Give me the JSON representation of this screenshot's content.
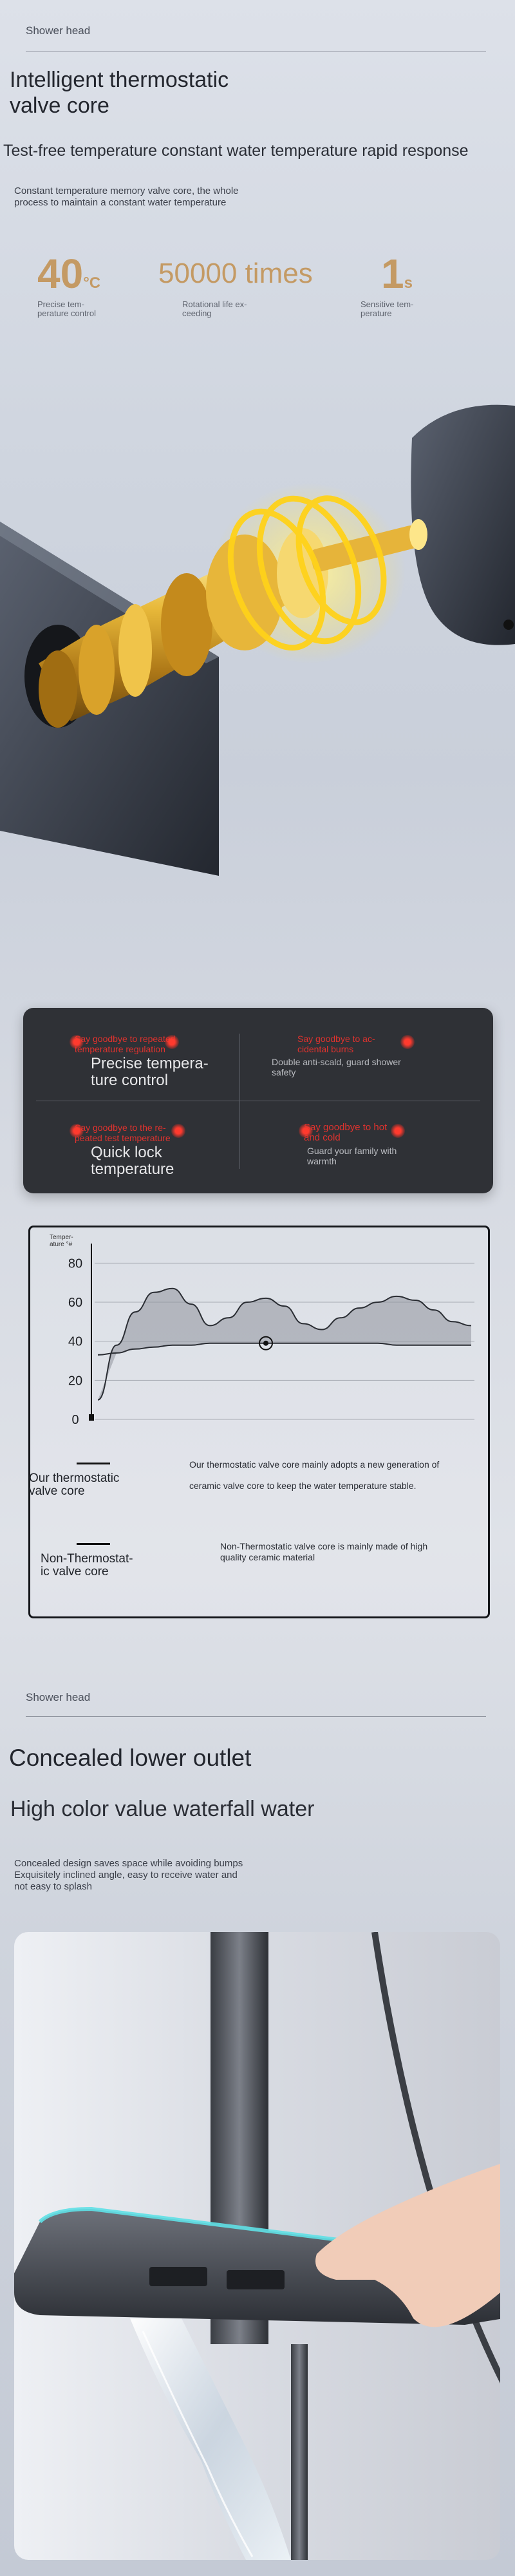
{
  "section1": {
    "kicker": "Shower head",
    "title_line1": "Intelligent thermostatic",
    "title_line2": "valve core",
    "subtitle": "Test-free temperature constant water temperature rapid response",
    "desc_line1": "Constant temperature memory valve core, the whole",
    "desc_line2": "process to maintain a constant water temperature",
    "stats": [
      {
        "number": "40",
        "unit": "°C",
        "label_line1": "Precise tem-",
        "label_line2": "perature control"
      },
      {
        "number": "50000 times",
        "unit": "",
        "label_line1": "Rotational life ex-",
        "label_line2": "ceeding"
      },
      {
        "number": "1",
        "unit": "s",
        "label_line1": "Sensitive tem-",
        "label_line2": "perature"
      }
    ]
  },
  "panel": {
    "cells": [
      {
        "red_line1": "Say goodbye to repeated",
        "red_line2": "temperature regulation",
        "title_line1": "Precise tempera-",
        "title_line2": "ture control",
        "sub_line1": "",
        "sub_line2": ""
      },
      {
        "red_line1": "Say goodbye to ac-",
        "red_line2": "cidental burns",
        "title_line1": "",
        "title_line2": "",
        "sub_line1": "Double anti-scald, guard shower",
        "sub_line2": "safety"
      },
      {
        "red_line1": "Say goodbye to the re-",
        "red_line2": "peated test temperature",
        "title_line1": "Quick lock",
        "title_line2": "temperature",
        "sub_line1": "",
        "sub_line2": ""
      },
      {
        "red_line1": "Say goodbye to hot",
        "red_line2": "and cold",
        "title_line1": "",
        "title_line2": "",
        "sub_line1": "Guard your family with",
        "sub_line2": "warmth"
      }
    ]
  },
  "chart_data": {
    "type": "line",
    "ylabel_line1": "Temper-",
    "ylabel_line2": "ature °#",
    "yticks": [
      "80",
      "60",
      "40",
      "20",
      "0"
    ],
    "ylim": [
      0,
      90
    ],
    "x": [
      0,
      5,
      10,
      15,
      20,
      25,
      30,
      35,
      40,
      45,
      50,
      55,
      60,
      65,
      70,
      75,
      80,
      85,
      90,
      95,
      100
    ],
    "series": [
      {
        "name": "Non-Thermostatic valve core",
        "values": [
          10,
          38,
          55,
          65,
          67,
          59,
          48,
          52,
          60,
          62,
          58,
          49,
          46,
          52,
          57,
          60,
          63,
          61,
          56,
          50,
          48
        ]
      },
      {
        "name": "Our thermostatic valve core",
        "values": [
          33,
          34,
          36,
          37,
          38,
          38,
          39,
          39,
          39,
          39,
          39,
          39,
          39,
          39,
          39,
          39,
          38,
          38,
          38,
          38,
          38
        ]
      }
    ],
    "grid": true,
    "legend_placement": "bottom-left",
    "marker_x": 45,
    "legend": [
      {
        "label_line1": "Our thermostatic",
        "label_line2": "valve core",
        "desc_line1": "Our thermostatic valve core mainly adopts a new generation of",
        "desc_line2": "ceramic valve core to keep the water temperature stable."
      },
      {
        "label_line1": "Non-Thermostat-",
        "label_line2": "ic valve core",
        "desc_line1": "Non-Thermostatic valve core is mainly made of high",
        "desc_line2": "quality ceramic material"
      }
    ]
  },
  "section2": {
    "kicker": "Shower head",
    "title": "Concealed lower outlet",
    "subtitle": "High color value waterfall water",
    "desc_line1": "Concealed design saves space while avoiding bumps",
    "desc_line2": "Exquisitely inclined angle, easy to receive water and",
    "desc_line3": "not easy to splash"
  },
  "colors": {
    "accent_gold": "#c49a64",
    "panel_bg": "#2f3136",
    "warning_red": "#e0322e",
    "cyan_glow": "#5fe0e6"
  }
}
